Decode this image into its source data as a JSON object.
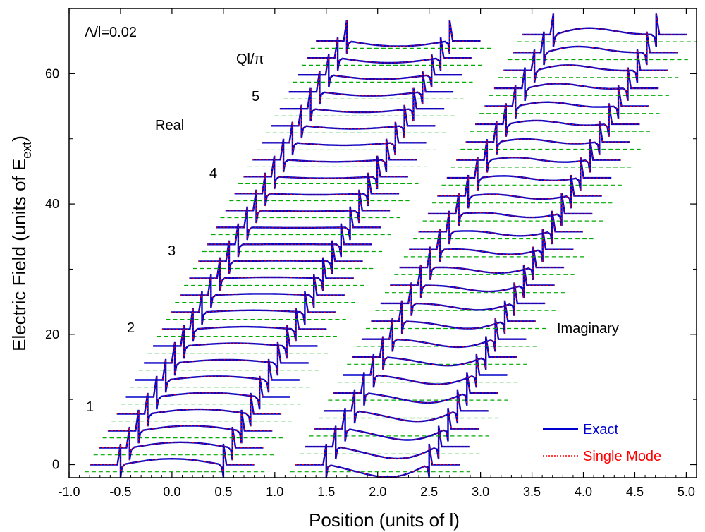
{
  "chart_data": {
    "type": "line",
    "xlabel": "Position (units of l)",
    "ylabel_main": "Electric Field (units of E",
    "ylabel_sub": "ext",
    "ylabel_tail": ")",
    "xlim": [
      -1.0,
      5.1
    ],
    "ylim": [
      -2,
      70
    ],
    "x_ticks": [
      -1.0,
      -0.5,
      0.0,
      0.5,
      1.0,
      1.5,
      2.0,
      2.5,
      3.0,
      3.5,
      4.0,
      4.5,
      5.0
    ],
    "x_tick_labels": [
      "-1.0",
      "-0.5",
      "0.0",
      "0.5",
      "1.0",
      "1.5",
      "2.0",
      "2.5",
      "3.0",
      "3.5",
      "4.0",
      "4.5",
      "5.0"
    ],
    "y_ticks": [
      0,
      20,
      40,
      60
    ],
    "y_tick_labels": [
      "0",
      "20",
      "40",
      "60"
    ],
    "annotations": {
      "param": "Λ/l=0.02",
      "ql_label": "Ql/π",
      "real": "Real",
      "imaginary": "Imaginary",
      "ql_values": [
        "1",
        "2",
        "3",
        "4",
        "5"
      ]
    },
    "legend": {
      "placement": "bottom-right",
      "entries": [
        {
          "label": "Exact",
          "color": "#0000cc",
          "style": "solid"
        },
        {
          "label": "Single Mode",
          "color": "#ff0000",
          "style": "dotted"
        }
      ]
    },
    "families": [
      {
        "name": "Real",
        "count": 26,
        "baseline_start": 0,
        "baseline_step": 2.6,
        "slab_left_start": -0.5,
        "slab_right_start": 0.5,
        "shift_per_curve": 0.088,
        "center_bump_start": 0.9,
        "center_bump_end": -0.8
      },
      {
        "name": "Imaginary",
        "count": 25,
        "baseline_start": 0,
        "baseline_step": 2.75,
        "slab_left_start": 1.5,
        "slab_right_start": 2.5,
        "shift_per_curve": 0.092,
        "center_bump_start": -1.8,
        "center_bump_end": 0.8
      }
    ],
    "colors": {
      "exact": "#0000cc",
      "single_mode": "#ff0000",
      "baseline": "#00aa00"
    }
  }
}
